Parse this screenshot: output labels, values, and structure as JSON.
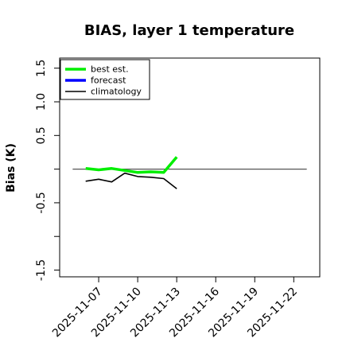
{
  "chart_data": {
    "type": "line",
    "title": "BIAS, layer 1 temperature",
    "xlabel": "",
    "ylabel": "Bias (K)",
    "xlim": [
      "2025-11-04",
      "2025-11-24"
    ],
    "ylim": [
      -1.6,
      1.65
    ],
    "y_ticks": [
      -1.5,
      -0.5,
      0.5,
      1.0,
      1.5
    ],
    "y_tick_labels": [
      "-1.5",
      "-0.5",
      "0.5",
      "1.0",
      "1.5"
    ],
    "y_tick_marks": [
      -1.5,
      -1.0,
      -0.5,
      0.0,
      0.5,
      1.0,
      1.5
    ],
    "x_ticks": [
      "2025-11-07",
      "2025-11-10",
      "2025-11-13",
      "2025-11-16",
      "2025-11-19",
      "2025-11-22"
    ],
    "x_highlight_tick": "2025-11-13",
    "legend_position": "top-left",
    "zero_line": 0.0,
    "series": [
      {
        "name": "best est.",
        "color": "#00ee00",
        "x": [
          "2025-11-06",
          "2025-11-07",
          "2025-11-08",
          "2025-11-09",
          "2025-11-10",
          "2025-11-11",
          "2025-11-12",
          "2025-11-13"
        ],
        "y": [
          0.01,
          -0.01,
          0.01,
          -0.02,
          -0.05,
          -0.04,
          -0.05,
          0.18
        ]
      },
      {
        "name": "forecast",
        "color": "#0000ff",
        "x": [],
        "y": []
      },
      {
        "name": "climatology",
        "color": "#000000",
        "x": [
          "2025-11-06",
          "2025-11-07",
          "2025-11-08",
          "2025-11-09",
          "2025-11-10",
          "2025-11-11",
          "2025-11-12",
          "2025-11-13"
        ],
        "y": [
          -0.18,
          -0.15,
          -0.19,
          -0.06,
          -0.11,
          -0.12,
          -0.14,
          -0.29
        ]
      }
    ]
  },
  "colors": {
    "highlight_tick": "#228b22",
    "axis": "#000000",
    "zero_line": "#555555"
  }
}
